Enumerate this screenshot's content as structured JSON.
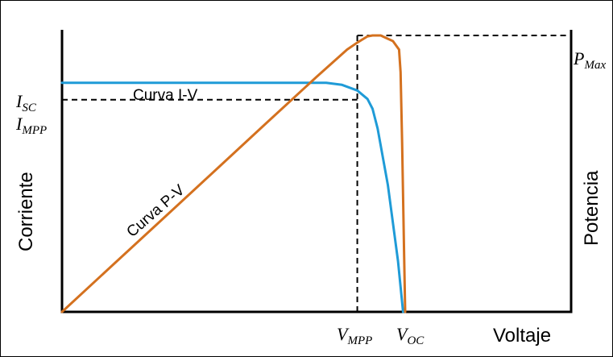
{
  "chart_data": {
    "type": "line",
    "title": "",
    "xlabel": "Voltaje",
    "ylabel_left": "Corriente",
    "ylabel_right": "Potencia",
    "xlim": [
      0,
      1
    ],
    "ylim": [
      0,
      1
    ],
    "grid": false,
    "legend": "none",
    "series": [
      {
        "name": "Curva I-V",
        "color": "#1f9bd7",
        "x": [
          0,
          0.1,
          0.2,
          0.3,
          0.4,
          0.5,
          0.519,
          0.55,
          0.58,
          0.6,
          0.61,
          0.62,
          0.64,
          0.66,
          0.67
        ],
        "y": [
          0.812,
          0.812,
          0.812,
          0.812,
          0.812,
          0.812,
          0.812,
          0.805,
          0.785,
          0.755,
          0.72,
          0.65,
          0.45,
          0.18,
          0
        ]
      },
      {
        "name": "Curva P-V",
        "color": "#d4711f",
        "x": [
          0,
          0.1,
          0.2,
          0.3,
          0.4,
          0.5,
          0.56,
          0.58,
          0.6,
          0.61,
          0.626,
          0.65,
          0.662,
          0.665,
          0.668,
          0.672,
          0.674
        ],
        "y": [
          0,
          0.167,
          0.333,
          0.5,
          0.667,
          0.833,
          0.93,
          0.955,
          0.977,
          0.98,
          0.98,
          0.96,
          0.93,
          0.85,
          0.6,
          0.2,
          0
        ]
      }
    ],
    "reference_lines": [
      {
        "type": "horizontal",
        "y": 0.752,
        "x_to": 0.58,
        "style": "dashed"
      },
      {
        "type": "horizontal",
        "y": 0.98,
        "x_from": 0.58,
        "x_to": 1,
        "style": "dashed"
      },
      {
        "type": "vertical",
        "x": 0.58,
        "y_to": 0.98,
        "style": "dashed"
      }
    ],
    "annotations": {
      "isc": {
        "main": "I",
        "sub": "SC"
      },
      "impp": {
        "main": "I",
        "sub": "MPP"
      },
      "pmax": {
        "main": "P",
        "sub": "Max"
      },
      "vmpp": {
        "main": "V",
        "sub": "MPP"
      },
      "voc": {
        "main": "V",
        "sub": "OC"
      }
    }
  }
}
